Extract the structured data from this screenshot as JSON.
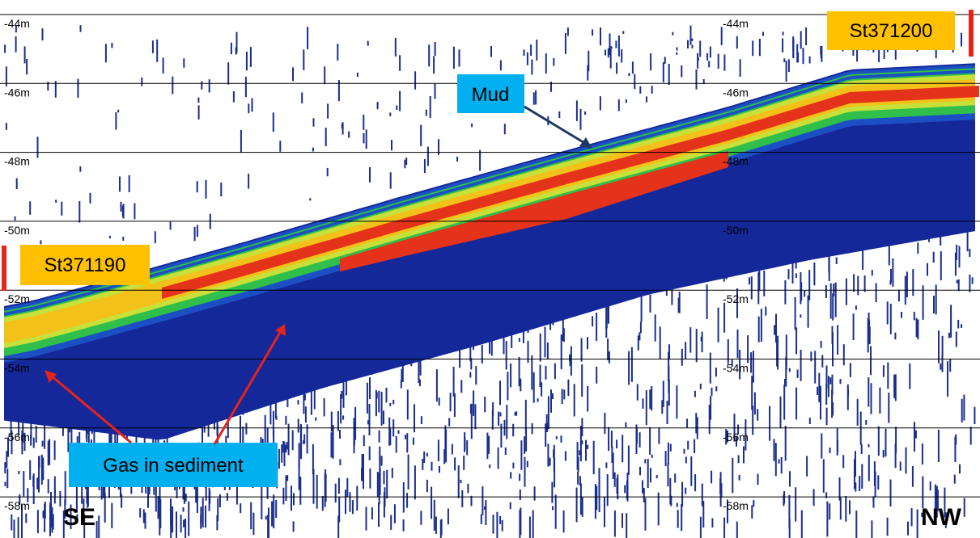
{
  "depth_labels": [
    "-44m",
    "-46m",
    "-48m",
    "-50m",
    "-52m",
    "-54m",
    "-56m",
    "-58m"
  ],
  "stations": {
    "right": "St371200",
    "left": "St371190"
  },
  "annotations": {
    "mud": "Mud",
    "gas": "Gas in sediment"
  },
  "directions": {
    "left": "SE",
    "right": "NW"
  }
}
